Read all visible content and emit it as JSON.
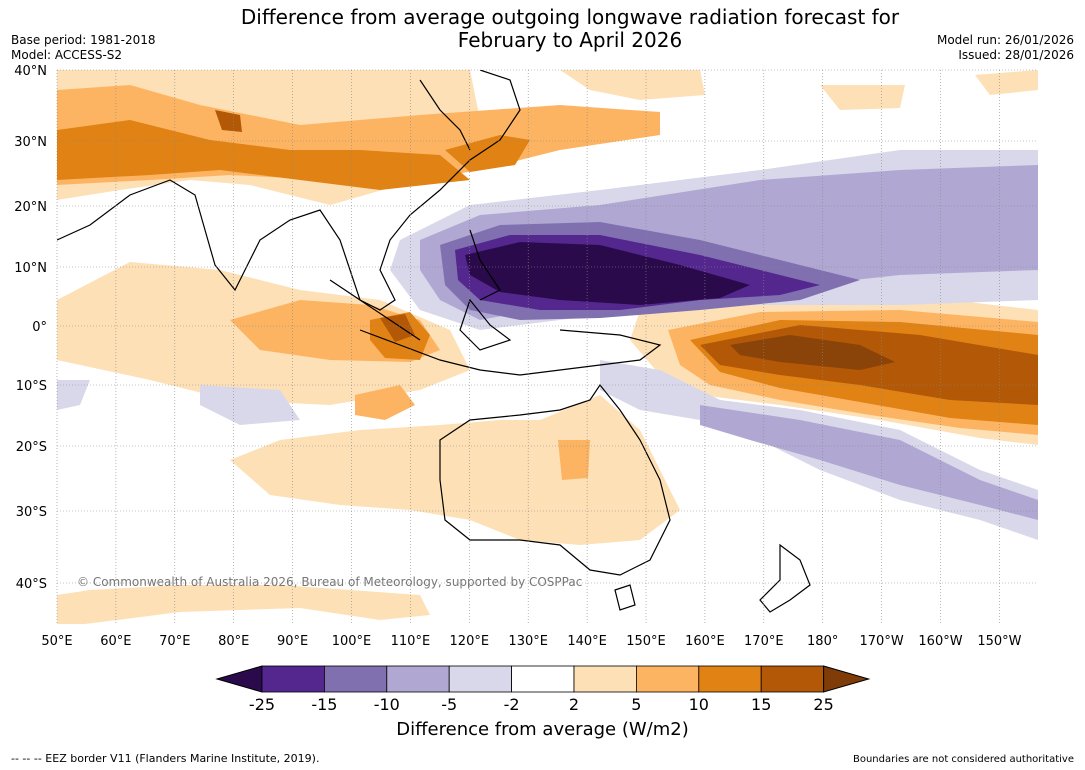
{
  "title_line1": "Difference from average outgoing longwave radiation forecast for",
  "title_line2": "February to April 2026",
  "base_period": "Base period: 1981-2018",
  "model": "Model: ACCESS-S2",
  "model_run": "Model run: 26/01/2026",
  "issued": "Issued: 28/01/2026",
  "lat_labels": [
    "40°N",
    "30°N",
    "20°N",
    "10°N",
    "0°",
    "10°S",
    "20°S",
    "30°S",
    "40°S"
  ],
  "lon_labels": [
    "50°E",
    "60°E",
    "70°E",
    "80°E",
    "90°E",
    "100°E",
    "110°E",
    "120°E",
    "130°E",
    "140°E",
    "150°E",
    "160°E",
    "170°E",
    "180°",
    "170°W",
    "160°W",
    "150°W"
  ],
  "copyright": "© Commonwealth of Australia 2026, Bureau of Meteorology, supported by COSPPac",
  "colorbar": {
    "ticks": [
      "-25",
      "-15",
      "-10",
      "-5",
      "-2",
      "2",
      "5",
      "10",
      "15",
      "25"
    ],
    "colors": [
      "#2b0a4c",
      "#54278f",
      "#8070b0",
      "#b0a8d2",
      "#d8d8ea",
      "#ffffff",
      "#fde0b5",
      "#fdb462",
      "#e08214",
      "#b35806",
      "#7f3b08"
    ],
    "label": "Difference from average (W/m2)"
  },
  "eez_note": "--  --  -- EEZ border V11 (Flanders Marine Institute, 2019).",
  "boundary_note": "Boundaries are not considered authoritative"
}
